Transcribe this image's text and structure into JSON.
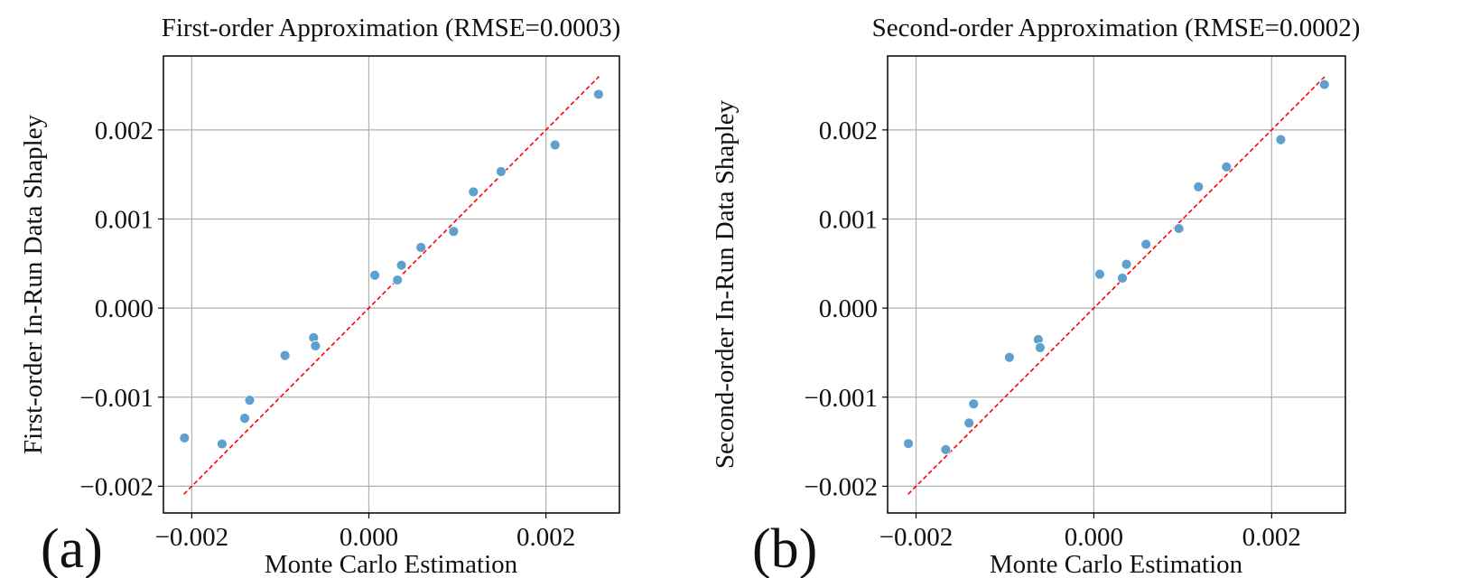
{
  "chart_data": [
    {
      "type": "scatter",
      "panel_label": "(a)",
      "title": "First-order Approximation (RMSE=0.0003)",
      "xlabel": "Monte Carlo Estimation",
      "ylabel": "First-order In-Run Data Shapley",
      "xlim": [
        -0.00232,
        0.00283
      ],
      "ylim": [
        -0.0023,
        0.00283
      ],
      "xticks": [
        -0.002,
        0.0,
        0.002
      ],
      "xtick_labels": [
        "−0.002",
        "0.000",
        "0.002"
      ],
      "yticks": [
        -0.002,
        -0.001,
        0.0,
        0.001,
        0.002
      ],
      "ytick_labels": [
        "−0.002",
        "−0.001",
        "0.000",
        "0.001",
        "0.002"
      ],
      "grid": true,
      "marker_color": "#5fa0cc",
      "reference_line": {
        "from": [
          -0.00209,
          -0.00209
        ],
        "to": [
          0.0026,
          0.0026
        ],
        "color": "#ff0000",
        "style": "dashed"
      },
      "points": [
        [
          -0.002082,
          -0.001458
        ],
        [
          -0.001658,
          -0.001525
        ],
        [
          -0.001402,
          -0.001237
        ],
        [
          -0.001346,
          -0.001034
        ],
        [
          -0.000947,
          -0.000532
        ],
        [
          -0.000624,
          -0.000332
        ],
        [
          -0.000603,
          -0.000424
        ],
        [
          6.7e-05,
          0.000369
        ],
        [
          0.000323,
          0.000315
        ],
        [
          0.000368,
          0.000481
        ],
        [
          0.000589,
          0.000681
        ],
        [
          0.000957,
          0.000861
        ],
        [
          0.001181,
          0.001305
        ],
        [
          0.001493,
          0.001532
        ],
        [
          0.002103,
          0.001831
        ],
        [
          0.002594,
          0.0024
        ]
      ]
    },
    {
      "type": "scatter",
      "panel_label": "(b)",
      "title": "Second-order Approximation (RMSE=0.0002)",
      "xlabel": "Monte Carlo Estimation",
      "ylabel": "Second-order In-Run Data Shapley",
      "xlim": [
        -0.00232,
        0.00283
      ],
      "ylim": [
        -0.0023,
        0.00283
      ],
      "xticks": [
        -0.002,
        0.0,
        0.002
      ],
      "xtick_labels": [
        "−0.002",
        "0.000",
        "0.002"
      ],
      "yticks": [
        -0.002,
        -0.001,
        0.0,
        0.001,
        0.002
      ],
      "ytick_labels": [
        "−0.002",
        "−0.001",
        "0.000",
        "0.001",
        "0.002"
      ],
      "grid": true,
      "marker_color": "#5fa0cc",
      "reference_line": {
        "from": [
          -0.00209,
          -0.00209
        ],
        "to": [
          0.0026,
          0.0026
        ],
        "color": "#ff0000",
        "style": "dashed"
      },
      "points": [
        [
          -0.002086,
          -0.001521
        ],
        [
          -0.001666,
          -0.001589
        ],
        [
          -0.001404,
          -0.00129
        ],
        [
          -0.001352,
          -0.001076
        ],
        [
          -0.00095,
          -0.000553
        ],
        [
          -0.000625,
          -0.000353
        ],
        [
          -0.000604,
          -0.000445
        ],
        [
          6.6e-05,
          0.00038
        ],
        [
          0.000321,
          0.000336
        ],
        [
          0.000367,
          0.000492
        ],
        [
          0.000587,
          0.000716
        ],
        [
          0.000957,
          0.000893
        ],
        [
          0.001177,
          0.001361
        ],
        [
          0.001492,
          0.001585
        ],
        [
          0.002103,
          0.001891
        ],
        [
          0.002594,
          0.00251
        ]
      ]
    }
  ]
}
